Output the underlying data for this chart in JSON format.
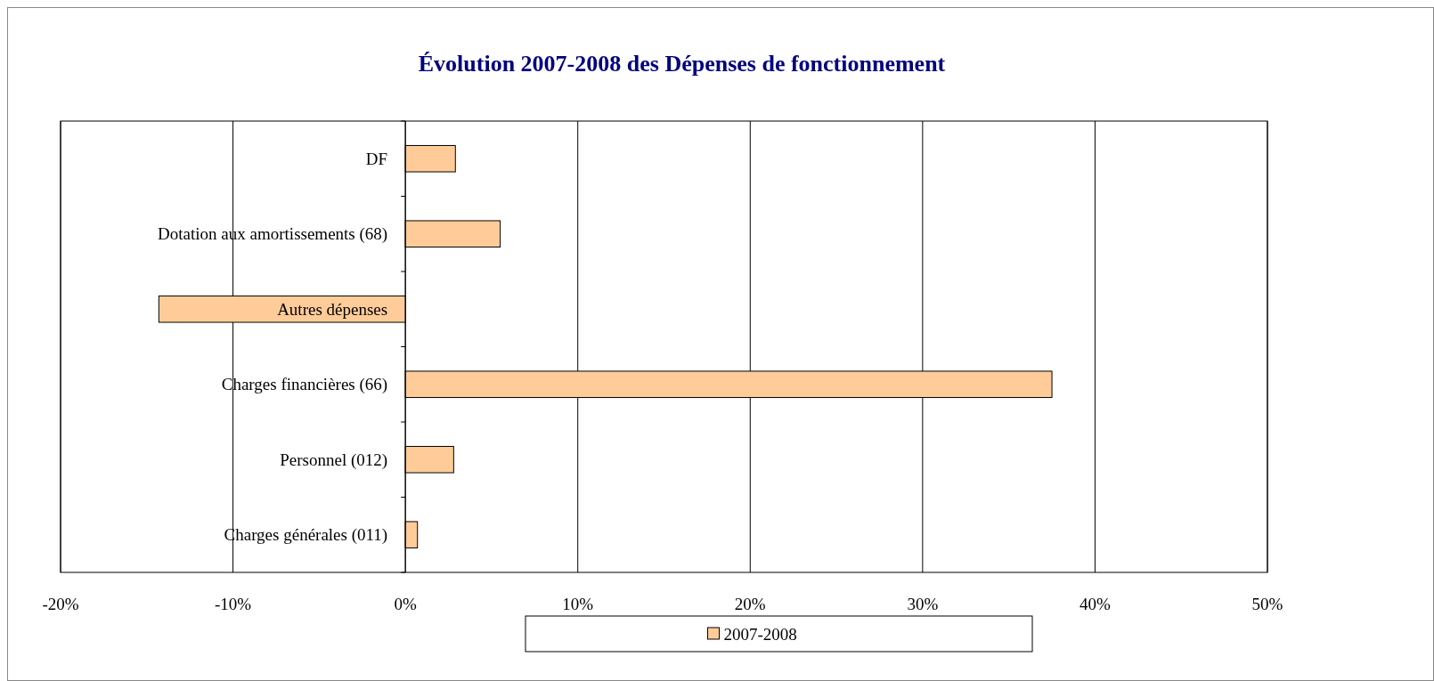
{
  "chart_data": {
    "type": "bar",
    "orientation": "horizontal",
    "title": "Évolution 2007-2008 des Dépenses de fonctionnement",
    "categories": [
      "DF",
      "Dotation aux amortissements (68)",
      "Autres dépenses",
      "Charges financières (66)",
      "Personnel (012)",
      "Charges générales (011)"
    ],
    "series": [
      {
        "name": "2007-2008",
        "color": "#ffcc99",
        "values": [
          2.9,
          5.5,
          -14.3,
          37.5,
          2.8,
          0.7
        ]
      }
    ],
    "xlim": [
      -20,
      50
    ],
    "xticks": [
      {
        "value": -20,
        "label": "-20%"
      },
      {
        "value": -10,
        "label": "-10%"
      },
      {
        "value": 0,
        "label": "0%"
      },
      {
        "value": 10,
        "label": "10%"
      },
      {
        "value": 20,
        "label": "20%"
      },
      {
        "value": 30,
        "label": "30%"
      },
      {
        "value": 40,
        "label": "40%"
      },
      {
        "value": 50,
        "label": "50%"
      }
    ],
    "grid": "x",
    "legend": "bottom"
  }
}
